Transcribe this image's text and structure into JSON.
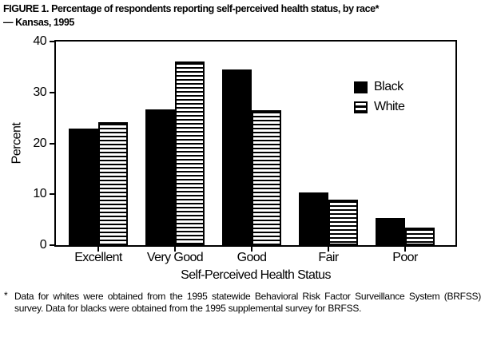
{
  "figure": {
    "title_line1": "FIGURE 1. Percentage of respondents reporting self-perceived health status, by race*",
    "title_line2": "— Kansas, 1995",
    "footnote_marker": "*",
    "footnote": "Data for whites were obtained from the 1995 statewide Behavioral Risk Factor Surveillance System (BRFSS) survey. Data for blacks were obtained from the 1995 supplemental survey for BRFSS."
  },
  "chart_data": {
    "type": "bar",
    "title": "Percentage of respondents reporting self-perceived health status, by race — Kansas, 1995",
    "categories": [
      "Excellent",
      "Very Good",
      "Good",
      "Fair",
      "Poor"
    ],
    "series": [
      {
        "name": "Black",
        "fill": "solid-black",
        "values": [
          22.9,
          26.7,
          34.5,
          10.4,
          5.4
        ]
      },
      {
        "name": "White",
        "fill": "horizontal-stripes",
        "values": [
          24.2,
          36.0,
          26.5,
          9.0,
          3.5
        ]
      }
    ],
    "xlabel": "Self-Perceived Health Status",
    "ylabel": "Percent",
    "ylim": [
      0,
      40
    ],
    "yticks": [
      0,
      10,
      20,
      30,
      40
    ],
    "legend_position": "inside-top-right",
    "grid": false,
    "colors": {
      "bar": "#000000",
      "background": "#ffffff",
      "text": "#000000"
    }
  }
}
